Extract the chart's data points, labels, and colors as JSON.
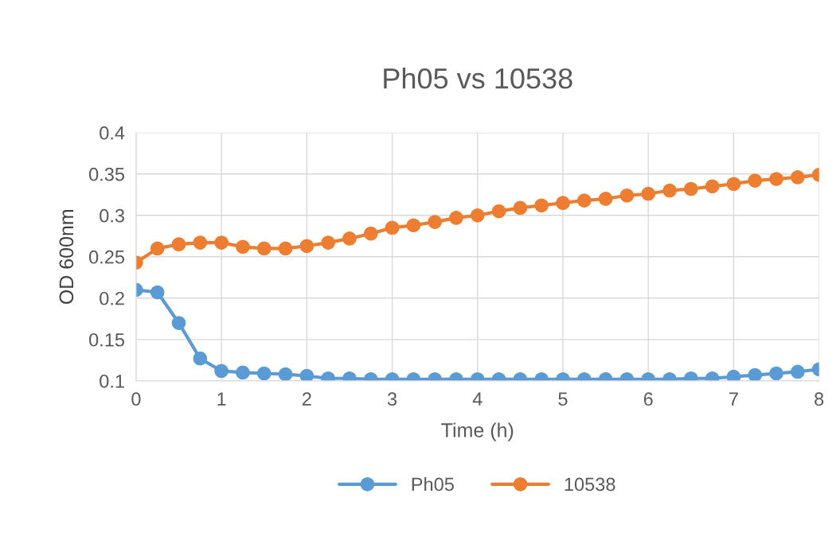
{
  "chart_data": {
    "type": "line",
    "title": "Ph05 vs 10538",
    "xlabel": "Time (h)",
    "ylabel": "OD 600nm",
    "x": [
      0,
      0.25,
      0.5,
      0.75,
      1,
      1.25,
      1.5,
      1.75,
      2,
      2.25,
      2.5,
      2.75,
      3,
      3.25,
      3.5,
      3.75,
      4,
      4.25,
      4.5,
      4.75,
      5,
      5.25,
      5.5,
      5.75,
      6,
      6.25,
      6.5,
      6.75,
      7,
      7.25,
      7.5,
      7.75,
      8
    ],
    "series": [
      {
        "name": "Ph05",
        "color": "#5b9bd5",
        "values": [
          0.21,
          0.207,
          0.17,
          0.127,
          0.112,
          0.11,
          0.109,
          0.108,
          0.106,
          0.103,
          0.103,
          0.102,
          0.102,
          0.102,
          0.102,
          0.102,
          0.102,
          0.102,
          0.102,
          0.102,
          0.102,
          0.102,
          0.102,
          0.102,
          0.102,
          0.102,
          0.103,
          0.103,
          0.105,
          0.107,
          0.109,
          0.111,
          0.114
        ]
      },
      {
        "name": "10538",
        "color": "#ed7d31",
        "values": [
          0.243,
          0.26,
          0.265,
          0.267,
          0.267,
          0.262,
          0.26,
          0.26,
          0.263,
          0.267,
          0.272,
          0.278,
          0.285,
          0.288,
          0.292,
          0.297,
          0.3,
          0.305,
          0.309,
          0.312,
          0.315,
          0.318,
          0.32,
          0.324,
          0.326,
          0.33,
          0.332,
          0.335,
          0.338,
          0.342,
          0.344,
          0.346,
          0.349
        ]
      }
    ],
    "xlim": [
      0,
      8
    ],
    "xticks": [
      0,
      1,
      2,
      3,
      4,
      5,
      6,
      7,
      8
    ],
    "ylim": [
      0.1,
      0.4
    ],
    "yticks": [
      0.1,
      0.15,
      0.2,
      0.25,
      0.3,
      0.35,
      0.4
    ],
    "grid": true,
    "legend": "bottom",
    "marker": "circle",
    "line_style": "solid"
  }
}
